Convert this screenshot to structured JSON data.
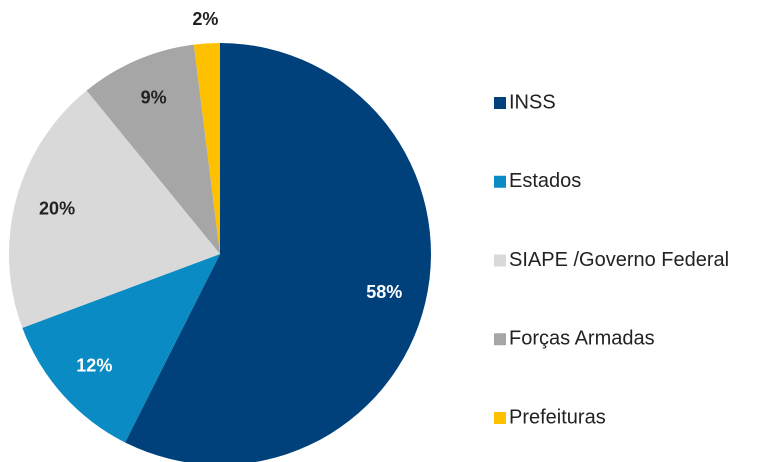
{
  "chart_data": {
    "type": "pie",
    "categories": [
      "INSS",
      "Estados",
      "SIAPE /Governo Federal",
      "Forças Armadas",
      "Prefeituras"
    ],
    "values": [
      58,
      12,
      20,
      9,
      2
    ],
    "value_labels": [
      "58%",
      "12%",
      "20%",
      "9%",
      "2%"
    ],
    "colors": [
      "#00417b",
      "#0b8bc4",
      "#d9d9d9",
      "#a6a6a6",
      "#ffc000"
    ],
    "legend": "right"
  }
}
